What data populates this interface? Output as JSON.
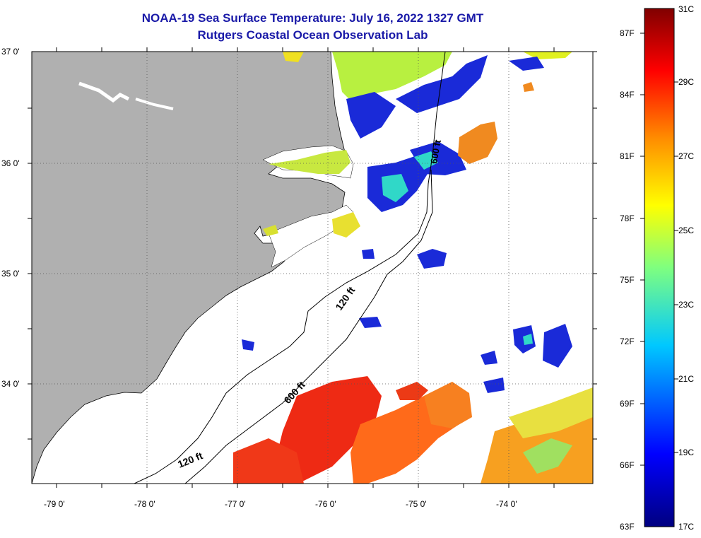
{
  "title": "NOAA-19 Sea Surface Temperature:  July 16, 2022 1327 GMT",
  "subtitle": "Rutgers Coastal Ocean Observation Lab",
  "colors": {
    "land": "#b0b0b0",
    "title": "#1a1aa8"
  },
  "axes": {
    "lat_labels": [
      "37 0'",
      "36 0'",
      "35 0'",
      "34 0'"
    ],
    "lon_labels": [
      "-79 0'",
      "-78 0'",
      "-77 0'",
      "-76 0'",
      "-75 0'",
      "-74 0'"
    ]
  },
  "isobaths": {
    "inner": "120 ft",
    "outer": "600 ft",
    "inner_south": "120 ft",
    "shelf_north": "600 ft"
  },
  "colorbar": {
    "fahrenheit_labels": [
      "87F",
      "84F",
      "81F",
      "78F",
      "75F",
      "72F",
      "69F",
      "66F",
      "63F"
    ],
    "celsius_labels": [
      "31C",
      "29C",
      "27C",
      "25C",
      "23C",
      "21C",
      "19C",
      "17C"
    ]
  }
}
